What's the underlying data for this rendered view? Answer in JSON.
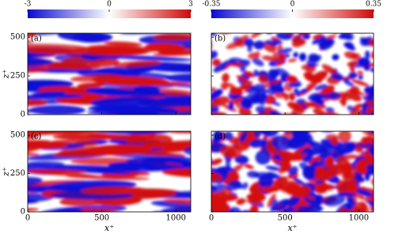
{
  "colorbars": [
    {
      "ticks": [
        -3,
        0,
        3
      ]
    },
    {
      "ticks": [
        -0.35,
        0,
        0.35
      ]
    }
  ],
  "panels": [
    {
      "label": "(a)"
    },
    {
      "label": "(b)"
    },
    {
      "label": "(c)"
    },
    {
      "label": "(d)"
    }
  ],
  "x_axis": {
    "label": "x⁺",
    "lim": [
      0,
      1100
    ],
    "ticks": [
      0,
      500,
      1000
    ]
  },
  "z_axis": {
    "label": "z⁺",
    "lim": [
      0,
      526
    ],
    "ticks": [
      0,
      250,
      500
    ]
  }
}
